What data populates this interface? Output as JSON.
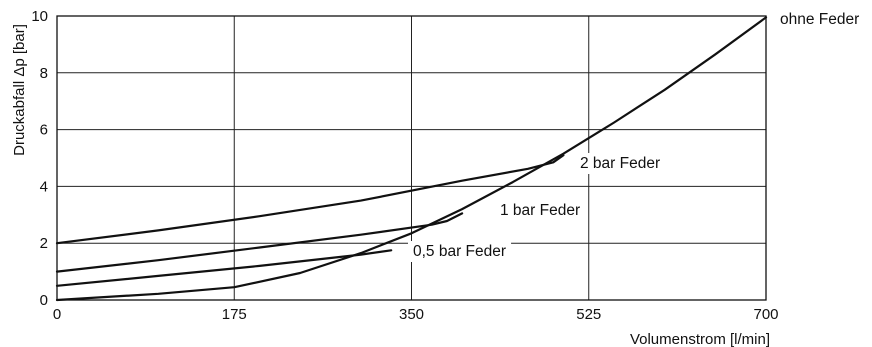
{
  "chart_data": {
    "type": "line",
    "title": "",
    "xlabel": "Volumenstrom [l/min]",
    "ylabel": "Druckabfall Δp [bar]",
    "xlim": [
      0,
      700
    ],
    "ylim": [
      0,
      10
    ],
    "xticks": [
      "0",
      "175",
      "350",
      "525",
      "700"
    ],
    "yticks": [
      "0",
      "2",
      "4",
      "6",
      "8",
      "10"
    ],
    "grid": true,
    "legend": "none",
    "series": [
      {
        "name": "ohne Feder",
        "x": [
          0,
          100,
          175,
          240,
          300,
          350,
          400,
          450,
          500,
          550,
          600,
          650,
          700
        ],
        "y": [
          0,
          0.22,
          0.45,
          0.95,
          1.65,
          2.35,
          3.2,
          4.15,
          5.15,
          6.25,
          7.4,
          8.65,
          9.95
        ]
      },
      {
        "name": "2 bar Feder",
        "x": [
          0,
          100,
          200,
          300,
          400,
          465,
          490,
          500
        ],
        "y": [
          2.0,
          2.45,
          2.95,
          3.5,
          4.2,
          4.62,
          4.85,
          5.1
        ]
      },
      {
        "name": "1 bar Feder",
        "x": [
          0,
          100,
          200,
          300,
          370,
          385,
          400
        ],
        "y": [
          1.0,
          1.4,
          1.85,
          2.3,
          2.65,
          2.78,
          3.05
        ]
      },
      {
        "name": "0,5 bar Feder",
        "x": [
          0,
          100,
          200,
          300,
          330
        ],
        "y": [
          0.5,
          0.85,
          1.2,
          1.6,
          1.75
        ]
      }
    ]
  }
}
